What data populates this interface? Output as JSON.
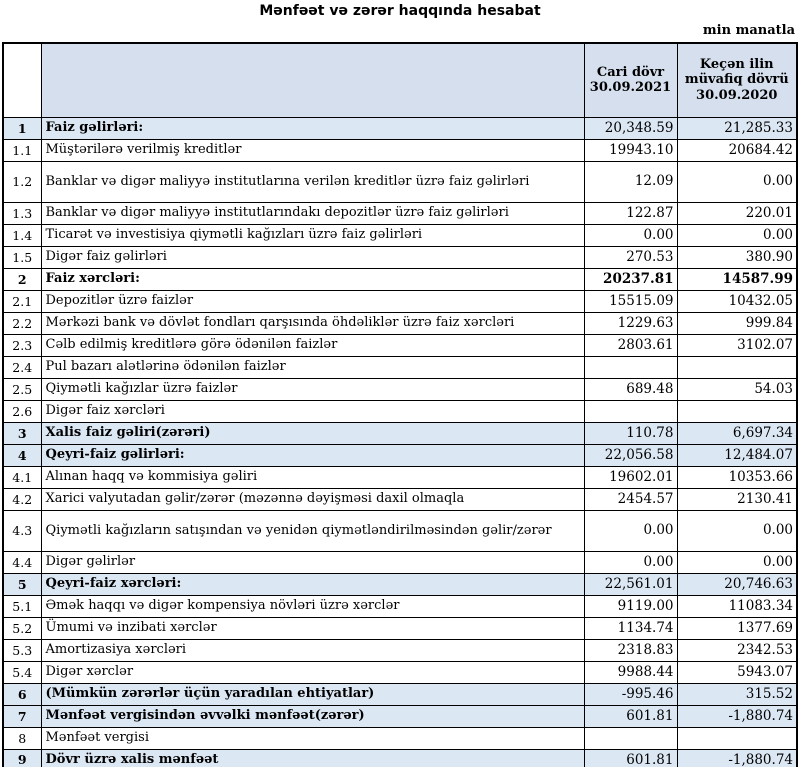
{
  "title": "Mənfəət və zərər haqqında hesabat",
  "unit_note": "min manatla",
  "colors": {
    "header_fill": "#d6dfee",
    "section_row_fill": "#dce7f4",
    "border": "#000000"
  },
  "table": {
    "header": {
      "num": "",
      "description": "",
      "current_period_line1": "Cari dövr",
      "current_period_line2": "30.09.2021",
      "previous_period_line1": "Keçən ilin",
      "previous_period_line2": "müvafiq dövrü",
      "previous_period_line3": "30.09.2020"
    },
    "rows": [
      {
        "num": "1",
        "label": "Faiz gəlirləri:",
        "v1": "20,348.59",
        "v2": "21,285.33",
        "fill": true,
        "bold": true,
        "bold_values": false,
        "tall": false
      },
      {
        "num": "1.1",
        "label": "Müştərilərə verilmiş kreditlər",
        "v1": "19943.10",
        "v2": "20684.42",
        "fill": false,
        "bold": false,
        "bold_values": false,
        "tall": false
      },
      {
        "num": "1.2",
        "label": "Banklar və digər maliyyə institutlarına verilən kreditlər üzrə faiz gəlirləri",
        "v1": "12.09",
        "v2": "0.00",
        "fill": false,
        "bold": false,
        "bold_values": false,
        "tall": true
      },
      {
        "num": "1.3",
        "label": "Banklar və digər maliyyə institutlarındakı depozitlər üzrə faiz gəlirləri",
        "v1": "122.87",
        "v2": "220.01",
        "fill": false,
        "bold": false,
        "bold_values": false,
        "tall": false
      },
      {
        "num": "1.4",
        "label": "Ticarət və investisiya qiymətli kağızları üzrə faiz gəlirləri",
        "v1": "0.00",
        "v2": "0.00",
        "fill": false,
        "bold": false,
        "bold_values": false,
        "tall": false
      },
      {
        "num": "1.5",
        "label": "Digər faiz gəlirləri",
        "v1": "270.53",
        "v2": "380.90",
        "fill": false,
        "bold": false,
        "bold_values": false,
        "tall": false
      },
      {
        "num": "2",
        "label": "Faiz xərcləri:",
        "v1": "20237.81",
        "v2": "14587.99",
        "fill": false,
        "bold": true,
        "bold_values": true,
        "tall": false
      },
      {
        "num": "2.1",
        "label": "Depozitlər üzrə faizlər",
        "v1": "15515.09",
        "v2": "10432.05",
        "fill": false,
        "bold": false,
        "bold_values": false,
        "tall": false
      },
      {
        "num": "2.2",
        "label": "Mərkəzi bank və dövlət fondları qarşısında öhdəliklər üzrə faiz xərcləri",
        "v1": "1229.63",
        "v2": "999.84",
        "fill": false,
        "bold": false,
        "bold_values": false,
        "tall": false
      },
      {
        "num": "2.3",
        "label": "Cəlb edilmiş kreditlərə görə ödənilən faizlər",
        "v1": "2803.61",
        "v2": "3102.07",
        "fill": false,
        "bold": false,
        "bold_values": false,
        "tall": false
      },
      {
        "num": "2.4",
        "label": "Pul bazarı alətlərinə ödənilən faizlər",
        "v1": "",
        "v2": "",
        "fill": false,
        "bold": false,
        "bold_values": false,
        "tall": false
      },
      {
        "num": "2.5",
        "label": "Qiymətli kağızlar üzrə faizlər",
        "v1": "689.48",
        "v2": "54.03",
        "fill": false,
        "bold": false,
        "bold_values": false,
        "tall": false
      },
      {
        "num": "2.6",
        "label": "Digər faiz xərcləri",
        "v1": "",
        "v2": "",
        "fill": false,
        "bold": false,
        "bold_values": false,
        "tall": false
      },
      {
        "num": "3",
        "label": "Xalis faiz gəliri(zərəri)",
        "v1": "110.78",
        "v2": "6,697.34",
        "fill": true,
        "bold": true,
        "bold_values": false,
        "tall": false
      },
      {
        "num": "4",
        "label": "Qeyri-faiz gəlirləri:",
        "v1": "22,056.58",
        "v2": "12,484.07",
        "fill": true,
        "bold": true,
        "bold_values": false,
        "tall": false
      },
      {
        "num": "4.1",
        "label": "Alınan haqq və kommisiya gəliri",
        "v1": "19602.01",
        "v2": "10353.66",
        "fill": false,
        "bold": false,
        "bold_values": false,
        "tall": false
      },
      {
        "num": "4.2",
        "label": "Xarici valyutadan gəlir/zərər (məzənnə dəyişməsi daxil olmaqla",
        "v1": "2454.57",
        "v2": "2130.41",
        "fill": false,
        "bold": false,
        "bold_values": false,
        "tall": false
      },
      {
        "num": "4.3",
        "label": "Qiymətli kağızların satışından və yenidən qiymətləndirilməsindən gəlir/zərər",
        "v1": "0.00",
        "v2": "0.00",
        "fill": false,
        "bold": false,
        "bold_values": false,
        "tall": true
      },
      {
        "num": "4.4",
        "label": "Digər gəlirlər",
        "v1": "0.00",
        "v2": "0.00",
        "fill": false,
        "bold": false,
        "bold_values": false,
        "tall": false
      },
      {
        "num": "5",
        "label": "Qeyri-faiz xərcləri:",
        "v1": "22,561.01",
        "v2": "20,746.63",
        "fill": true,
        "bold": true,
        "bold_values": false,
        "tall": false
      },
      {
        "num": "5.1",
        "label": "Əmək haqqı və digər kompensiya növləri üzrə xərclər",
        "v1": "9119.00",
        "v2": "11083.34",
        "fill": false,
        "bold": false,
        "bold_values": false,
        "tall": false
      },
      {
        "num": "5.2",
        "label": "Ümumi və inzibati xərclər",
        "v1": "1134.74",
        "v2": "1377.69",
        "fill": false,
        "bold": false,
        "bold_values": false,
        "tall": false
      },
      {
        "num": "5.3",
        "label": "Amortizasiya xərcləri",
        "v1": "2318.83",
        "v2": "2342.53",
        "fill": false,
        "bold": false,
        "bold_values": false,
        "tall": false
      },
      {
        "num": "5.4",
        "label": "Digər xərclər",
        "v1": "9988.44",
        "v2": "5943.07",
        "fill": false,
        "bold": false,
        "bold_values": false,
        "tall": false
      },
      {
        "num": "6",
        "label": "(Mümkün zərərlər üçün yaradılan ehtiyatlar)",
        "v1": "-995.46",
        "v2": "315.52",
        "fill": true,
        "bold": true,
        "bold_values": false,
        "tall": false
      },
      {
        "num": "7",
        "label": "Mənfəət vergisindən əvvəlki mənfəət(zərər)",
        "v1": "601.81",
        "v2": "-1,880.74",
        "fill": true,
        "bold": true,
        "bold_values": false,
        "tall": false
      },
      {
        "num": "8",
        "label": "Mənfəət vergisi",
        "v1": "",
        "v2": "",
        "fill": false,
        "bold": false,
        "bold_values": false,
        "tall": false
      },
      {
        "num": "9",
        "label": "Dövr üzrə xalis mənfəət",
        "v1": "601.81",
        "v2": "-1,880.74",
        "fill": true,
        "bold": true,
        "bold_values": false,
        "tall": false
      }
    ]
  }
}
